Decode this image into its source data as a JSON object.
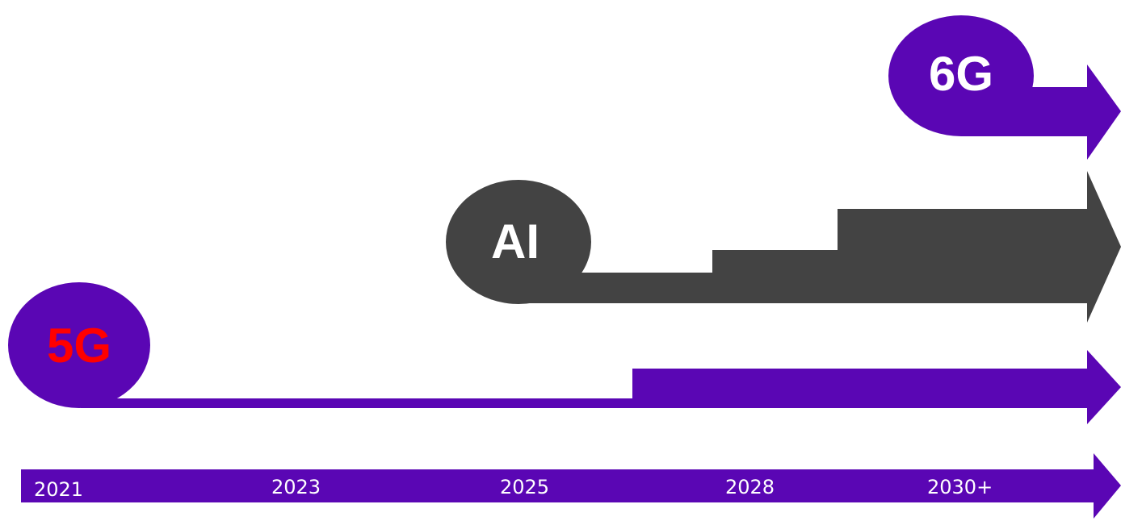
{
  "colors": {
    "purple": "#5a06b4",
    "dark_gray": "#434343",
    "white": "#ffffff",
    "red": "#ff0000"
  },
  "tracks": {
    "sixg": {
      "label": "6G",
      "label_color": "#ffffff",
      "fill": "#5a06b4"
    },
    "ai": {
      "label": "AI",
      "label_color": "#ffffff",
      "fill": "#434343"
    },
    "fiveg": {
      "label": "5G",
      "label_color": "#ff0000",
      "fill": "#5a06b4"
    }
  },
  "timeline": {
    "fill": "#5a06b4",
    "years": [
      "2021",
      "2023",
      "2025",
      "2028",
      "2030+"
    ]
  }
}
